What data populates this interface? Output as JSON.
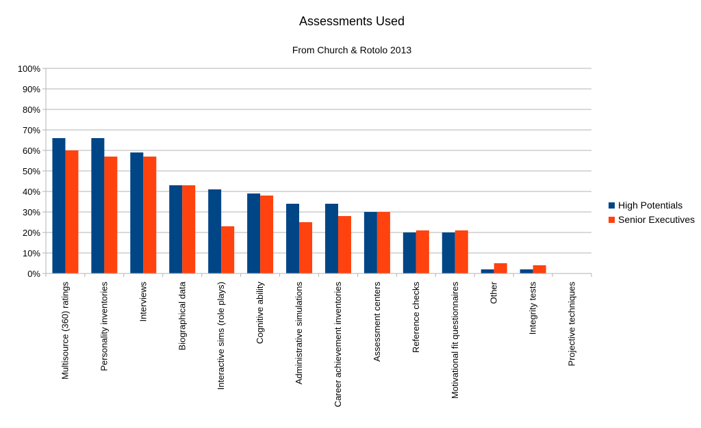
{
  "chart_data": {
    "type": "bar",
    "title": "Assessments Used",
    "subtitle": "From Church & Rotolo 2013",
    "xlabel": "",
    "ylabel": "",
    "ylim": [
      0,
      100
    ],
    "yticks": [
      "0%",
      "10%",
      "20%",
      "30%",
      "40%",
      "50%",
      "60%",
      "70%",
      "80%",
      "90%",
      "100%"
    ],
    "grid": true,
    "legend_position": "right",
    "categories": [
      "Multisource (360) ratings",
      "Personality inventories",
      "Interviews",
      "Biographical data",
      "Interactive sims (role plays)",
      "Cognitive ability",
      "Administrative simulations",
      "Career achievement inventories",
      "Assessment centers",
      "Reference checks",
      "Motivational fit questionnaires",
      "Other",
      "Integrity tests",
      "Projective techniques"
    ],
    "series": [
      {
        "name": "High Potentials",
        "color": "#004586",
        "values": [
          66,
          66,
          59,
          43,
          41,
          39,
          34,
          34,
          30,
          20,
          20,
          2,
          2,
          0
        ]
      },
      {
        "name": "Senior Executives",
        "color": "#ff420e",
        "values": [
          60,
          57,
          57,
          43,
          23,
          38,
          25,
          28,
          30,
          21,
          21,
          5,
          4,
          0
        ]
      }
    ]
  }
}
